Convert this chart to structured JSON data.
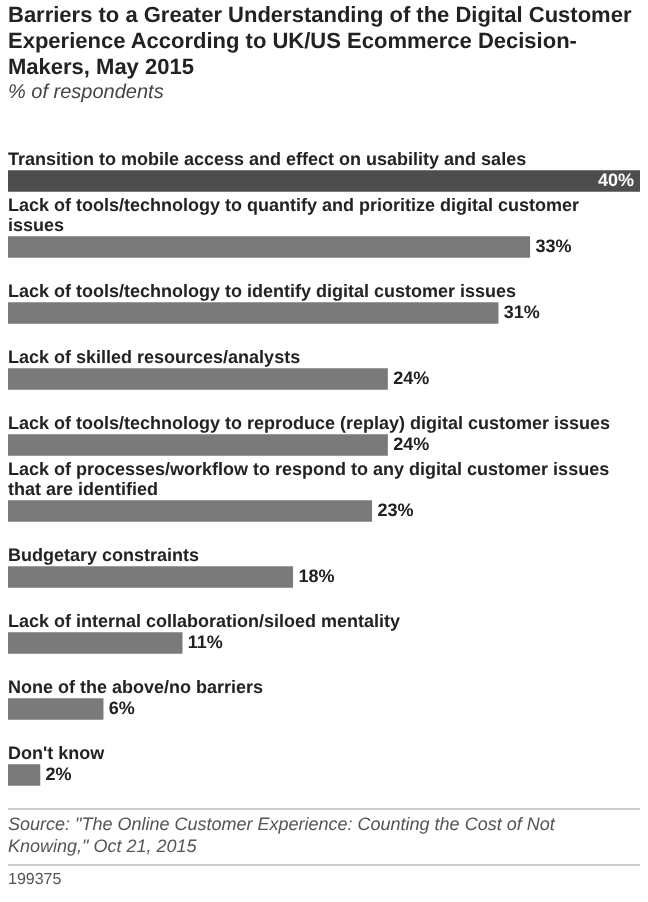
{
  "chart_data": {
    "type": "bar",
    "orientation": "horizontal",
    "title": "Barriers to a Greater Understanding of the Digital Customer Experience According to UK/US Ecommerce Decision-Makers, May 2015",
    "subtitle": "% of respondents",
    "categories": [
      "Transition to mobile access and effect on usability and sales",
      "Lack of tools/technology to quantify and prioritize digital customer issues",
      "Lack of tools/technology to identify digital customer issues",
      "Lack of skilled resources/analysts",
      "Lack of tools/technology to reproduce (replay) digital customer issues",
      "Lack of processes/workflow to respond to any digital customer issues that are identified",
      "Budgetary constraints",
      "Lack of internal collaboration/siloed mentality",
      "None of the above/no barriers",
      "Don't know"
    ],
    "values": [
      40,
      33,
      31,
      24,
      24,
      23,
      18,
      11,
      6,
      2
    ],
    "colors": [
      "#4d4d4d",
      "#7a7a7a",
      "#7a7a7a",
      "#7a7a7a",
      "#7a7a7a",
      "#7a7a7a",
      "#7a7a7a",
      "#7a7a7a",
      "#7a7a7a",
      "#7a7a7a"
    ],
    "value_labels": [
      "40%",
      "33%",
      "31%",
      "24%",
      "24%",
      "23%",
      "18%",
      "11%",
      "6%",
      "2%"
    ],
    "legend": false,
    "annotations": [
      "Source: \"The Online Customer Experience: Counting the Cost of Not Knowing,\" Oct 21, 2015",
      "199375"
    ]
  }
}
